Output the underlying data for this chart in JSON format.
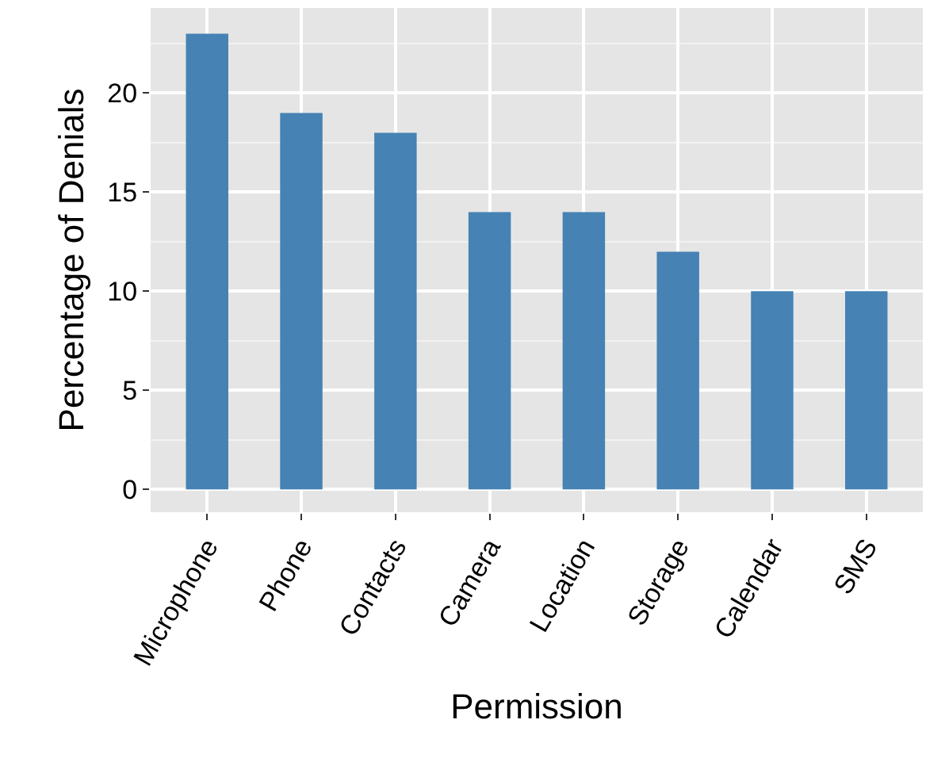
{
  "chart_data": {
    "type": "bar",
    "xlabel": "Permission",
    "ylabel": "Percentage of Denials",
    "categories": [
      "Microphone",
      "Phone",
      "Contacts",
      "Camera",
      "Location",
      "Storage",
      "Calendar",
      "SMS"
    ],
    "values": [
      23,
      19,
      18,
      14,
      14,
      12,
      10,
      10
    ],
    "color": "#4682b4",
    "ylim": [
      -1.15,
      24.3
    ],
    "yticks": [
      0,
      5,
      10,
      15,
      20
    ],
    "grid": true
  }
}
